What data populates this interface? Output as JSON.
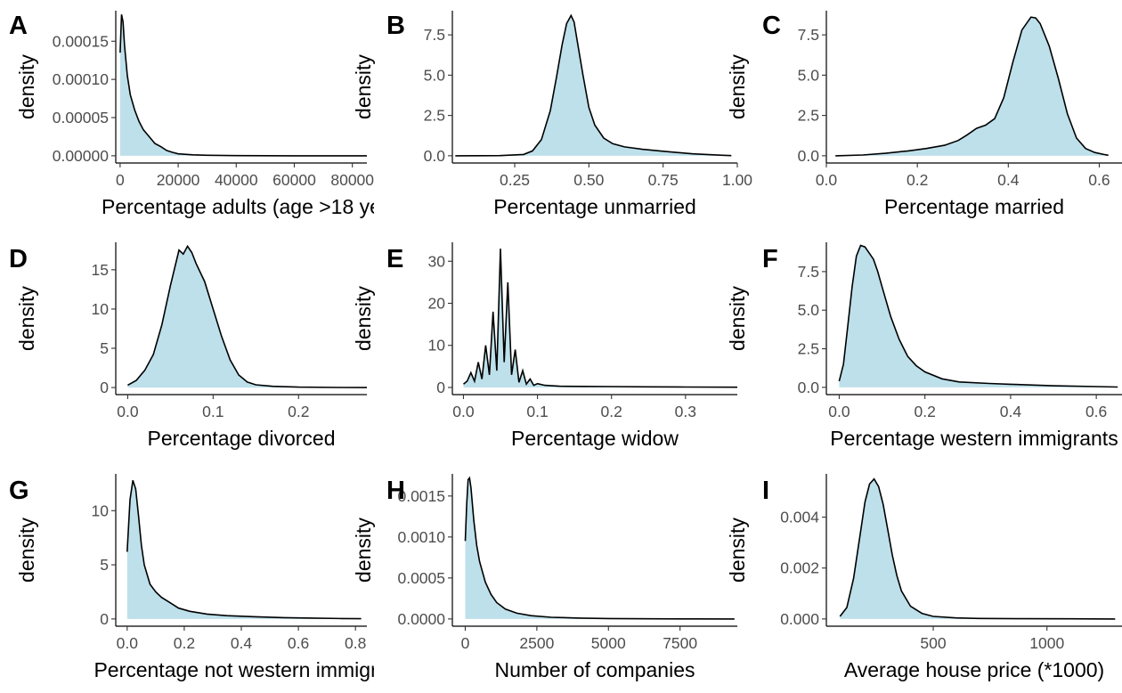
{
  "style": {
    "fill_color": "#add8e6",
    "fill_opacity": 0.8,
    "line_color": "#000000",
    "axis_color": "#000000",
    "tick_label_color": "#4d4d4d"
  },
  "chart_data": [
    {
      "panel": "A",
      "type": "area",
      "xlabel": "Percentage adults (age >18 ye",
      "ylabel": "density",
      "xlim": [
        -1500,
        85000
      ],
      "ylim": [
        -9.5e-06,
        0.00019
      ],
      "xticks": [
        0,
        20000,
        40000,
        60000,
        80000
      ],
      "xtick_labels": [
        "0",
        "20000",
        "40000",
        "60000",
        "80000"
      ],
      "yticks": [
        0,
        5e-05,
        0.0001,
        0.00015
      ],
      "ytick_labels": [
        "0.00000",
        "0.00005",
        "0.00010",
        "0.00015"
      ],
      "x": [
        0,
        500,
        1000,
        1500,
        2500,
        3500,
        5000,
        6500,
        8000,
        10000,
        12000,
        14000,
        16000,
        18000,
        20000,
        25000,
        30000,
        40000,
        50000,
        60000,
        70000,
        85000
      ],
      "y": [
        0.000135,
        0.000185,
        0.000175,
        0.000145,
        0.000105,
        8e-05,
        6e-05,
        4.5e-05,
        3.4e-05,
        2.5e-05,
        1.6e-05,
        1.2e-05,
        7e-06,
        4.5e-06,
        2.5e-06,
        1.2e-06,
        6e-07,
        2e-07,
        1e-07,
        0,
        0,
        0
      ]
    },
    {
      "panel": "B",
      "type": "area",
      "xlabel": "Percentage unmarried",
      "ylabel": "density",
      "xlim": [
        0.04,
        1.0
      ],
      "ylim": [
        -0.45,
        9.0
      ],
      "xticks": [
        0.25,
        0.5,
        0.75,
        1.0
      ],
      "xtick_labels": [
        "0.25",
        "0.50",
        "0.75",
        "1.00"
      ],
      "yticks": [
        0,
        2.5,
        5,
        7.5
      ],
      "ytick_labels": [
        "0.0",
        "2.5",
        "5.0",
        "7.5"
      ],
      "x": [
        0.05,
        0.2,
        0.28,
        0.31,
        0.34,
        0.37,
        0.39,
        0.41,
        0.425,
        0.44,
        0.45,
        0.46,
        0.48,
        0.5,
        0.52,
        0.55,
        0.58,
        0.62,
        0.68,
        0.75,
        0.85,
        0.95,
        0.98
      ],
      "y": [
        0,
        0.01,
        0.08,
        0.3,
        1.0,
        2.8,
        4.8,
        6.9,
        8.2,
        8.7,
        8.3,
        7.2,
        5.0,
        3.0,
        1.9,
        1.1,
        0.75,
        0.55,
        0.4,
        0.28,
        0.12,
        0.03,
        0.01
      ]
    },
    {
      "panel": "C",
      "type": "area",
      "xlabel": "Percentage married",
      "ylabel": "density",
      "xlim": [
        0.0,
        0.65
      ],
      "ylim": [
        -0.45,
        9.0
      ],
      "xticks": [
        0.0,
        0.2,
        0.4,
        0.6
      ],
      "xtick_labels": [
        "0.0",
        "0.2",
        "0.4",
        "0.6"
      ],
      "yticks": [
        0,
        2.5,
        5,
        7.5
      ],
      "ytick_labels": [
        "0.0",
        "2.5",
        "5.0",
        "7.5"
      ],
      "x": [
        0.02,
        0.08,
        0.13,
        0.18,
        0.22,
        0.26,
        0.29,
        0.31,
        0.33,
        0.35,
        0.37,
        0.39,
        0.41,
        0.43,
        0.45,
        0.46,
        0.47,
        0.49,
        0.51,
        0.53,
        0.55,
        0.57,
        0.59,
        0.61,
        0.62
      ],
      "y": [
        0,
        0.05,
        0.15,
        0.3,
        0.45,
        0.65,
        0.95,
        1.3,
        1.7,
        1.9,
        2.3,
        3.6,
        5.8,
        7.8,
        8.6,
        8.55,
        8.2,
        6.8,
        4.8,
        2.6,
        1.1,
        0.45,
        0.2,
        0.08,
        0.03
      ]
    },
    {
      "panel": "D",
      "type": "area",
      "xlabel": "Percentage divorced",
      "ylabel": "density",
      "xlim": [
        -0.014,
        0.28
      ],
      "ylim": [
        -0.9,
        18.5
      ],
      "xticks": [
        0.0,
        0.1,
        0.2
      ],
      "xtick_labels": [
        "0.0",
        "0.1",
        "0.2"
      ],
      "yticks": [
        0,
        5,
        10,
        15
      ],
      "ytick_labels": [
        "0",
        "5",
        "10",
        "15"
      ],
      "x": [
        0.0,
        0.01,
        0.02,
        0.03,
        0.04,
        0.05,
        0.06,
        0.065,
        0.07,
        0.075,
        0.08,
        0.09,
        0.1,
        0.11,
        0.12,
        0.13,
        0.14,
        0.15,
        0.17,
        0.2,
        0.25,
        0.28
      ],
      "y": [
        0.3,
        0.9,
        2.2,
        4.2,
        8.0,
        13.0,
        17.5,
        17.0,
        18.0,
        17.2,
        15.8,
        13.5,
        10.0,
        6.5,
        3.5,
        1.6,
        0.7,
        0.35,
        0.15,
        0.05,
        0.01,
        0.0
      ]
    },
    {
      "panel": "E",
      "type": "area",
      "xlabel": "Percentage widow",
      "ylabel": "density",
      "xlim": [
        -0.015,
        0.37
      ],
      "ylim": [
        -1.7,
        34.5
      ],
      "xticks": [
        0.0,
        0.1,
        0.2,
        0.3
      ],
      "xtick_labels": [
        "0.0",
        "0.1",
        "0.2",
        "0.3"
      ],
      "yticks": [
        0,
        10,
        20,
        30
      ],
      "ytick_labels": [
        "0",
        "10",
        "20",
        "30"
      ],
      "x": [
        0.0,
        0.005,
        0.01,
        0.015,
        0.02,
        0.025,
        0.03,
        0.035,
        0.04,
        0.045,
        0.05,
        0.055,
        0.06,
        0.065,
        0.07,
        0.075,
        0.08,
        0.085,
        0.09,
        0.095,
        0.1,
        0.11,
        0.13,
        0.16,
        0.2,
        0.25,
        0.3,
        0.37
      ],
      "y": [
        0.8,
        1.5,
        3.5,
        1.5,
        6.0,
        2.0,
        10.0,
        3.0,
        18.0,
        4.0,
        33.0,
        6.0,
        25.0,
        3.0,
        9.0,
        1.2,
        4.0,
        0.8,
        2.0,
        0.5,
        0.9,
        0.5,
        0.3,
        0.25,
        0.2,
        0.15,
        0.1,
        0.05
      ]
    },
    {
      "panel": "F",
      "type": "area",
      "xlabel": "Percentage western immigrants",
      "ylabel": "density",
      "xlim": [
        -0.03,
        0.66
      ],
      "ylim": [
        -0.47,
        9.4
      ],
      "xticks": [
        0.0,
        0.2,
        0.4,
        0.6
      ],
      "xtick_labels": [
        "0.0",
        "0.2",
        "0.4",
        "0.6"
      ],
      "yticks": [
        0,
        2.5,
        5,
        7.5
      ],
      "ytick_labels": [
        "0.0",
        "2.5",
        "5.0",
        "7.5"
      ],
      "x": [
        0.0,
        0.01,
        0.02,
        0.03,
        0.04,
        0.05,
        0.06,
        0.07,
        0.08,
        0.09,
        0.1,
        0.12,
        0.14,
        0.16,
        0.18,
        0.2,
        0.24,
        0.28,
        0.35,
        0.4,
        0.5,
        0.6,
        0.65
      ],
      "y": [
        0.4,
        1.5,
        4.0,
        6.5,
        8.5,
        9.2,
        9.1,
        8.7,
        8.3,
        7.5,
        6.5,
        4.6,
        3.1,
        2.0,
        1.4,
        1.0,
        0.55,
        0.35,
        0.25,
        0.2,
        0.1,
        0.05,
        0.02
      ]
    },
    {
      "panel": "G",
      "type": "area",
      "xlabel": "Percentage not western immigra",
      "ylabel": "density",
      "xlim": [
        -0.04,
        0.84
      ],
      "ylim": [
        -0.67,
        13.4
      ],
      "xticks": [
        0.0,
        0.2,
        0.4,
        0.6,
        0.8
      ],
      "xtick_labels": [
        "0.0",
        "0.2",
        "0.4",
        "0.6",
        "0.8"
      ],
      "yticks": [
        0,
        5,
        10
      ],
      "ytick_labels": [
        "0",
        "5",
        "10"
      ],
      "x": [
        0.0,
        0.01,
        0.02,
        0.03,
        0.04,
        0.05,
        0.06,
        0.08,
        0.1,
        0.12,
        0.15,
        0.18,
        0.22,
        0.28,
        0.35,
        0.45,
        0.55,
        0.65,
        0.75,
        0.82
      ],
      "y": [
        6.2,
        11.0,
        12.8,
        12.0,
        9.5,
        6.8,
        5.0,
        3.2,
        2.5,
        2.0,
        1.5,
        1.0,
        0.7,
        0.45,
        0.3,
        0.2,
        0.12,
        0.08,
        0.04,
        0.02
      ]
    },
    {
      "panel": "H",
      "type": "area",
      "xlabel": "Number of companies",
      "ylabel": "density",
      "xlim": [
        -450,
        9500
      ],
      "ylim": [
        -8.85e-05,
        0.00177
      ],
      "xticks": [
        0,
        2500,
        5000,
        7500
      ],
      "xtick_labels": [
        "0",
        "2500",
        "5000",
        "7500"
      ],
      "yticks": [
        0,
        0.0005,
        0.001,
        0.0015
      ],
      "ytick_labels": [
        "0.0000",
        "0.0005",
        "0.0010",
        "0.0015"
      ],
      "x": [
        0,
        50,
        100,
        150,
        200,
        300,
        400,
        500,
        700,
        900,
        1100,
        1400,
        1800,
        2300,
        3000,
        4000,
        5000,
        6500,
        8000,
        9400
      ],
      "y": [
        0.00095,
        0.0014,
        0.0017,
        0.00172,
        0.0016,
        0.0012,
        0.0009,
        0.0007,
        0.00045,
        0.0003,
        0.0002,
        0.00012,
        7e-05,
        4e-05,
        2e-05,
        1e-05,
        5e-06,
        2e-06,
        1e-06,
        0
      ]
    },
    {
      "panel": "I",
      "type": "area",
      "xlabel": "Average house price (*1000)",
      "ylabel": "density",
      "xlim": [
        30,
        1330
      ],
      "ylim": [
        -0.000285,
        0.0057
      ],
      "xticks": [
        500,
        1000
      ],
      "xtick_labels": [
        "500",
        "1000"
      ],
      "yticks": [
        0,
        0.002,
        0.004
      ],
      "ytick_labels": [
        "0.000",
        "0.002",
        "0.004"
      ],
      "x": [
        90,
        120,
        150,
        180,
        200,
        220,
        240,
        260,
        280,
        300,
        320,
        340,
        360,
        400,
        450,
        500,
        600,
        700,
        900,
        1100,
        1300
      ],
      "y": [
        0.0001,
        0.00045,
        0.0016,
        0.0034,
        0.0046,
        0.0053,
        0.0055,
        0.0052,
        0.0045,
        0.0035,
        0.0025,
        0.0017,
        0.0011,
        0.0005,
        0.00022,
        0.0001,
        4e-05,
        2e-05,
        1e-05,
        5e-06,
        0
      ]
    }
  ]
}
